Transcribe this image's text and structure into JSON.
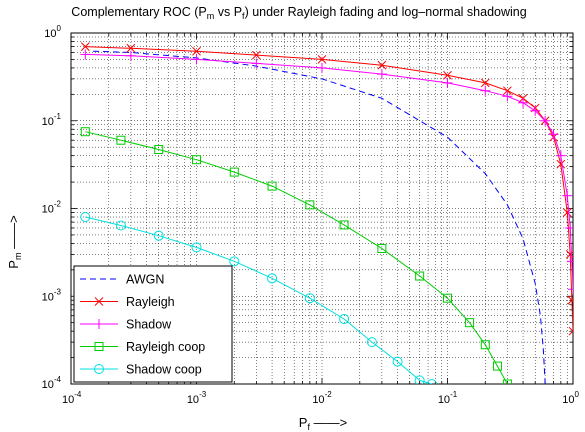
{
  "chart_data": {
    "type": "line",
    "title": {
      "pre": "Complementary ROC (P",
      "sub1": "m",
      "mid": " vs P",
      "sub2": "f",
      "post": ") under Rayleigh fading and log–normal shadowing"
    },
    "xlabel": {
      "base": "P",
      "sub": "f",
      "suffix": " ——>"
    },
    "ylabel": {
      "base": "P",
      "sub": "m",
      "suffix": " ——>"
    },
    "xscale": "log",
    "yscale": "log",
    "xlim": [
      0.0001,
      1
    ],
    "ylim": [
      0.0001,
      1
    ],
    "x_ticks": [
      {
        "base": "10",
        "exp": "-4",
        "value": 0.0001
      },
      {
        "base": "10",
        "exp": "-3",
        "value": 0.001
      },
      {
        "base": "10",
        "exp": "-2",
        "value": 0.01
      },
      {
        "base": "10",
        "exp": "-1",
        "value": 0.1
      },
      {
        "base": "10",
        "exp": "0",
        "value": 1
      }
    ],
    "y_ticks": [
      {
        "base": "10",
        "exp": "-4",
        "value": 0.0001
      },
      {
        "base": "10",
        "exp": "-3",
        "value": 0.001
      },
      {
        "base": "10",
        "exp": "-2",
        "value": 0.01
      },
      {
        "base": "10",
        "exp": "-1",
        "value": 0.1
      },
      {
        "base": "10",
        "exp": "0",
        "value": 1
      }
    ],
    "grid": true,
    "legend_position": "bottom-left",
    "series": [
      {
        "name": "AWGN",
        "color": "#0000ff",
        "line_style": "dashed",
        "marker": "none",
        "points": [
          [
            0.00015,
            0.62
          ],
          [
            0.0003,
            0.6
          ],
          [
            0.001,
            0.52
          ],
          [
            0.003,
            0.42
          ],
          [
            0.01,
            0.3
          ],
          [
            0.03,
            0.18
          ],
          [
            0.1,
            0.065
          ],
          [
            0.2,
            0.025
          ],
          [
            0.3,
            0.011
          ],
          [
            0.4,
            0.0045
          ],
          [
            0.5,
            0.0014
          ],
          [
            0.55,
            0.0006
          ],
          [
            0.58,
            0.00025
          ],
          [
            0.6,
            0.0001
          ]
        ]
      },
      {
        "name": "Rayleigh",
        "color": "#ff0000",
        "line_style": "solid",
        "marker": "x",
        "points": [
          [
            0.00013,
            0.7
          ],
          [
            0.0003,
            0.67
          ],
          [
            0.001,
            0.62
          ],
          [
            0.003,
            0.56
          ],
          [
            0.01,
            0.5
          ],
          [
            0.03,
            0.43
          ],
          [
            0.1,
            0.33
          ],
          [
            0.2,
            0.27
          ],
          [
            0.3,
            0.22
          ],
          [
            0.4,
            0.18
          ],
          [
            0.5,
            0.14
          ],
          [
            0.6,
            0.1
          ],
          [
            0.7,
            0.065
          ],
          [
            0.8,
            0.032
          ],
          [
            0.9,
            0.009
          ],
          [
            0.95,
            0.003
          ],
          [
            0.98,
            0.0009
          ],
          [
            1.0,
            0.0004
          ]
        ]
      },
      {
        "name": "Shadow",
        "color": "#ff00ff",
        "line_style": "solid",
        "marker": "+",
        "points": [
          [
            0.00013,
            0.57
          ],
          [
            0.0003,
            0.55
          ],
          [
            0.001,
            0.5
          ],
          [
            0.003,
            0.45
          ],
          [
            0.01,
            0.4
          ],
          [
            0.03,
            0.34
          ],
          [
            0.1,
            0.27
          ],
          [
            0.2,
            0.22
          ],
          [
            0.3,
            0.19
          ],
          [
            0.4,
            0.16
          ],
          [
            0.5,
            0.13
          ],
          [
            0.6,
            0.1
          ],
          [
            0.7,
            0.07
          ],
          [
            0.8,
            0.04
          ],
          [
            0.9,
            0.014
          ],
          [
            0.95,
            0.006
          ],
          [
            0.98,
            0.0025
          ],
          [
            1.0,
            0.0012
          ]
        ]
      },
      {
        "name": "Rayleigh coop",
        "color": "#00cc00",
        "line_style": "solid",
        "marker": "square",
        "points": [
          [
            0.00013,
            0.075
          ],
          [
            0.00025,
            0.06
          ],
          [
            0.0005,
            0.047
          ],
          [
            0.001,
            0.036
          ],
          [
            0.002,
            0.026
          ],
          [
            0.004,
            0.018
          ],
          [
            0.008,
            0.011
          ],
          [
            0.015,
            0.0065
          ],
          [
            0.03,
            0.0035
          ],
          [
            0.06,
            0.0017
          ],
          [
            0.1,
            0.00095
          ],
          [
            0.15,
            0.0005
          ],
          [
            0.2,
            0.00028
          ],
          [
            0.25,
            0.00016
          ],
          [
            0.3,
            0.0001
          ]
        ]
      },
      {
        "name": "Shadow coop",
        "color": "#00e0e0",
        "line_style": "solid",
        "marker": "circle",
        "points": [
          [
            0.00013,
            0.008
          ],
          [
            0.00025,
            0.0064
          ],
          [
            0.0005,
            0.0049
          ],
          [
            0.001,
            0.0036
          ],
          [
            0.002,
            0.0025
          ],
          [
            0.004,
            0.0016
          ],
          [
            0.008,
            0.00095
          ],
          [
            0.015,
            0.00055
          ],
          [
            0.025,
            0.0003
          ],
          [
            0.04,
            0.00018
          ],
          [
            0.06,
            0.00011
          ],
          [
            0.075,
            0.0001
          ]
        ]
      }
    ]
  }
}
